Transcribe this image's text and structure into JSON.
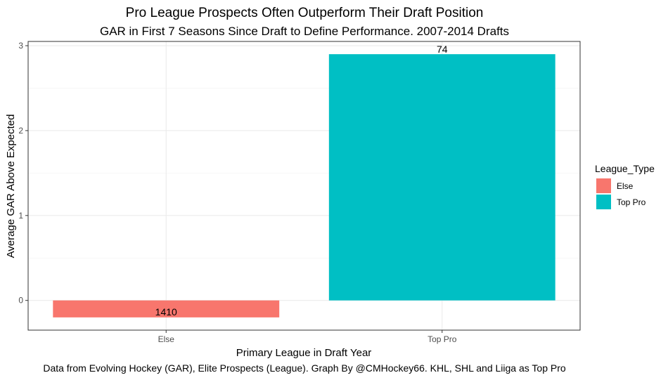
{
  "chart_data": {
    "type": "bar",
    "title": "Pro League Prospects Often Outperform Their Draft Position",
    "subtitle": "GAR in First 7 Seasons Since Draft to Define Performance. 2007-2014 Drafts",
    "xlabel": "Primary League in Draft Year",
    "ylabel": "Average GAR Above Expected",
    "caption": "Data from Evolving Hockey (GAR), Elite Prospects (League). Graph By @CMHockey66. KHL, SHL and Liiga as Top Pro",
    "categories": [
      "Else",
      "Top Pro"
    ],
    "values": [
      -0.2,
      2.9
    ],
    "data_labels": [
      "1410",
      "74"
    ],
    "colors": [
      "#F8766D",
      "#00BFC4"
    ],
    "ylim": [
      -0.35,
      3.05
    ],
    "yticks": [
      0,
      1,
      2,
      3
    ],
    "ytick_labels": [
      "0",
      "1",
      "2",
      "3"
    ],
    "grid": true,
    "legend": {
      "title": "League_Type",
      "position": "right",
      "entries": [
        "Else",
        "Top Pro"
      ]
    }
  }
}
